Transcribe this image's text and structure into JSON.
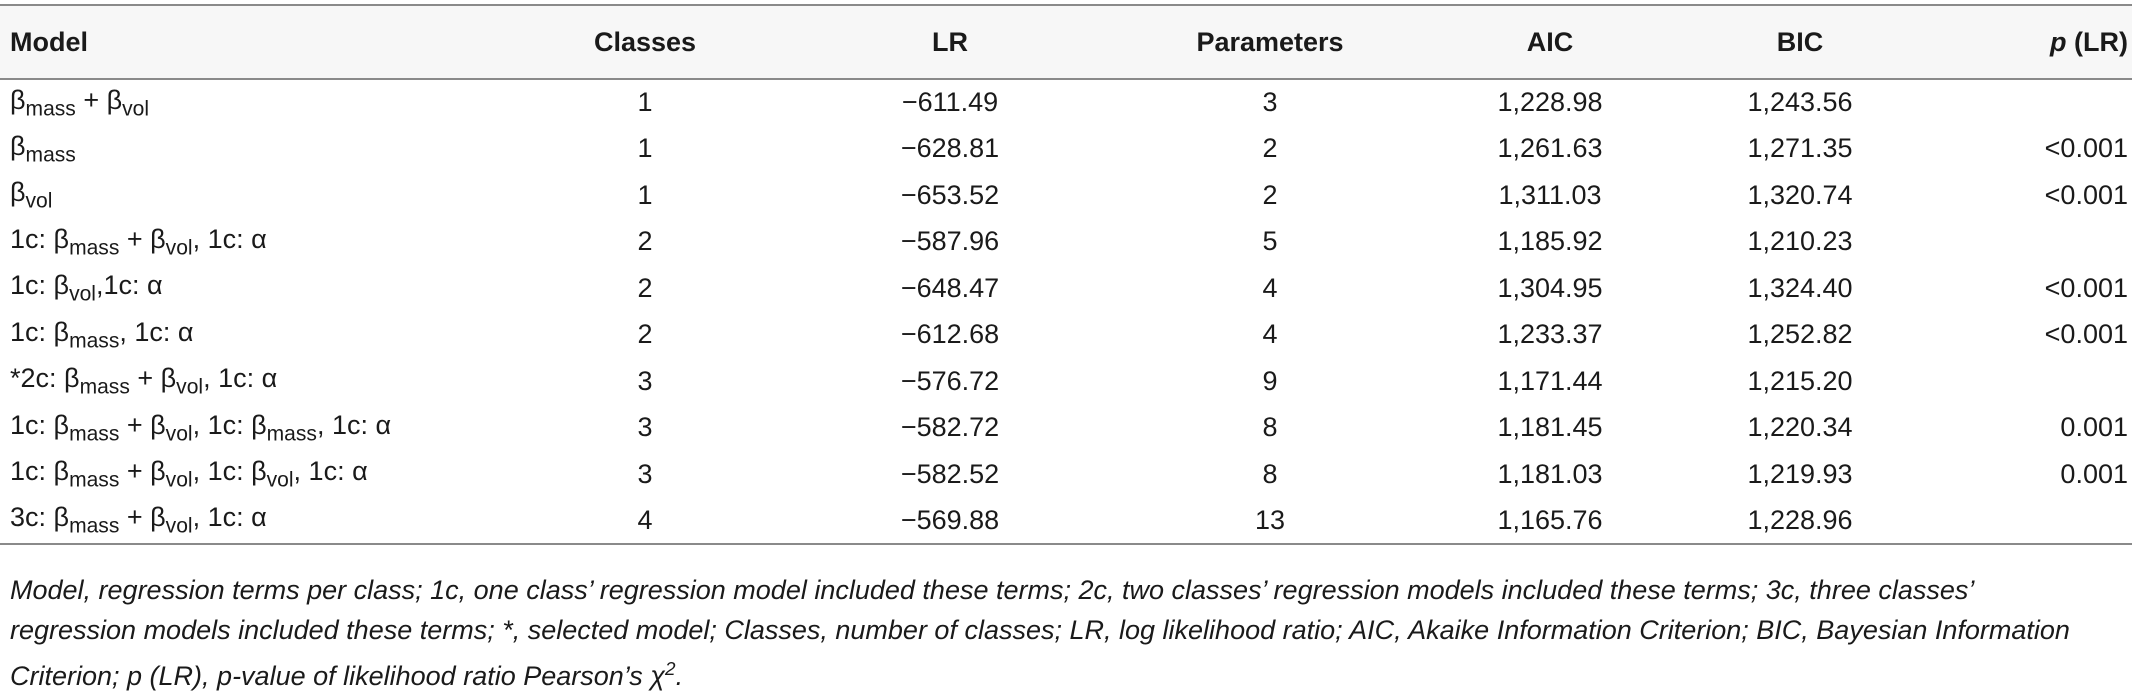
{
  "table": {
    "headers": {
      "model": "Model",
      "classes": "Classes",
      "lr": "LR",
      "parameters": "Parameters",
      "aic": "AIC",
      "bic": "BIC",
      "p_italic": "p",
      "p_suffix": " (LR)"
    },
    "rows": [
      {
        "model_prefix": "",
        "model": [
          [
            "β",
            "mass"
          ],
          [
            " + β",
            "vol"
          ]
        ],
        "classes": "1",
        "lr": "−611.49",
        "parameters": "3",
        "aic": "1,228.98",
        "bic": "1,243.56",
        "p": ""
      },
      {
        "model_prefix": "",
        "model": [
          [
            "β",
            "mass"
          ]
        ],
        "classes": "1",
        "lr": "−628.81",
        "parameters": "2",
        "aic": "1,261.63",
        "bic": "1,271.35",
        "p": "<0.001"
      },
      {
        "model_prefix": "",
        "model": [
          [
            "β",
            "vol"
          ]
        ],
        "classes": "1",
        "lr": "−653.52",
        "parameters": "2",
        "aic": "1,311.03",
        "bic": "1,320.74",
        "p": "<0.001"
      },
      {
        "model_prefix": "",
        "model": [
          [
            "1c: β",
            "mass"
          ],
          [
            " + β",
            "vol"
          ],
          [
            ", 1c: α",
            ""
          ]
        ],
        "classes": "2",
        "lr": "−587.96",
        "parameters": "5",
        "aic": "1,185.92",
        "bic": "1,210.23",
        "p": ""
      },
      {
        "model_prefix": "",
        "model": [
          [
            "1c: β",
            "vol"
          ],
          [
            ",1c: α",
            ""
          ]
        ],
        "classes": "2",
        "lr": "−648.47",
        "parameters": "4",
        "aic": "1,304.95",
        "bic": "1,324.40",
        "p": "<0.001"
      },
      {
        "model_prefix": "",
        "model": [
          [
            "1c: β",
            "mass"
          ],
          [
            ", 1c: α",
            ""
          ]
        ],
        "classes": "2",
        "lr": "−612.68",
        "parameters": "4",
        "aic": "1,233.37",
        "bic": "1,252.82",
        "p": "<0.001"
      },
      {
        "model_prefix": "",
        "model": [
          [
            "*2c: β",
            "mass"
          ],
          [
            " + β",
            "vol"
          ],
          [
            ", 1c: α",
            ""
          ]
        ],
        "classes": "3",
        "lr": "−576.72",
        "parameters": "9",
        "aic": "1,171.44",
        "bic": "1,215.20",
        "p": ""
      },
      {
        "model_prefix": "",
        "model": [
          [
            "1c: β",
            "mass"
          ],
          [
            " + β",
            "vol"
          ],
          [
            ", 1c: β",
            "mass"
          ],
          [
            ", 1c: α",
            ""
          ]
        ],
        "classes": "3",
        "lr": "−582.72",
        "parameters": "8",
        "aic": "1,181.45",
        "bic": "1,220.34",
        "p": "0.001"
      },
      {
        "model_prefix": "",
        "model": [
          [
            "1c: β",
            "mass"
          ],
          [
            " + β",
            "vol"
          ],
          [
            ", 1c: β",
            "vol"
          ],
          [
            ", 1c: α",
            ""
          ]
        ],
        "classes": "3",
        "lr": "−582.52",
        "parameters": "8",
        "aic": "1,181.03",
        "bic": "1,219.93",
        "p": "0.001"
      },
      {
        "model_prefix": "",
        "model": [
          [
            "3c: β",
            "mass"
          ],
          [
            " + β",
            "vol"
          ],
          [
            ", 1c: α",
            ""
          ]
        ],
        "classes": "4",
        "lr": "−569.88",
        "parameters": "13",
        "aic": "1,165.76",
        "bic": "1,228.96",
        "p": ""
      }
    ]
  },
  "footnote": {
    "text": "Model, regression terms per class; 1c, one class’ regression model included these terms; 2c, two classes’ regression models included these terms; 3c, three classes’ regression models included these terms; *, selected model; Classes, number of classes; LR, log likelihood ratio; AIC, Akaike Information Criterion; BIC, Bayesian Information Criterion; p (LR), p-value of likelihood ratio Pearson’s χ",
    "sup": "2",
    "end": "."
  }
}
